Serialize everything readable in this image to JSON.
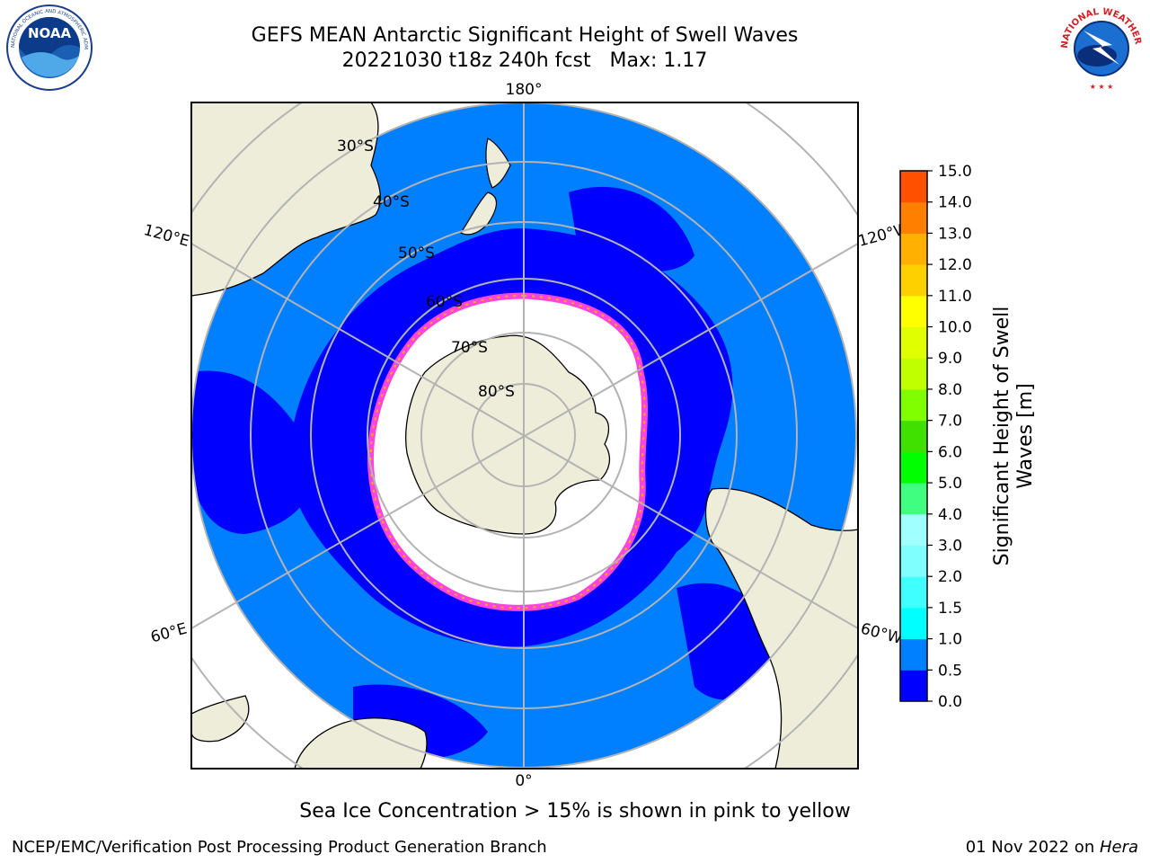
{
  "header": {
    "title_line1": "GEFS MEAN Antarctic Significant Height of Swell Waves",
    "title_line2": "20221030 t18z 240h fcst   Max: 1.17"
  },
  "logos": {
    "left": {
      "icon": "noaa-logo",
      "text": "NOAA",
      "ring_text": "NATIONAL OCEANIC AND ATMOSPHERIC ADMINISTRATION · U.S. DEPARTMENT OF COMMERCE"
    },
    "right": {
      "icon": "nws-logo",
      "ring_text": "NATIONAL WEATHER SERVICE"
    }
  },
  "map": {
    "projection": "south polar stereographic",
    "lat_labels": [
      "30°S",
      "40°S",
      "50°S",
      "60°S",
      "70°S",
      "80°S"
    ],
    "lon_labels": {
      "top": "180°",
      "bottom": "0°",
      "left_upper": "120°E",
      "left_lower": "60°E",
      "right_upper": "120°W",
      "right_lower": "60°W"
    },
    "colors": {
      "land": "#eeedda",
      "ocean_0": "#0000ff",
      "ocean_05": "#0080ff",
      "ice": "#ffffff",
      "grid": "#b3b3b3"
    }
  },
  "colorbar": {
    "label": "Significant Height of Swell Waves [m]",
    "label_line1": "Significant Height of Swell",
    "label_line2": "Waves [m]",
    "ticks": [
      "0.0",
      "0.5",
      "1.0",
      "1.5",
      "2.0",
      "3.0",
      "4.0",
      "5.0",
      "6.0",
      "7.0",
      "8.0",
      "9.0",
      "10.0",
      "11.0",
      "12.0",
      "13.0",
      "14.0",
      "15.0"
    ],
    "colors": [
      "#0000ff",
      "#0080ff",
      "#00ffff",
      "#40ffff",
      "#80ffff",
      "#a0ffff",
      "#40ff80",
      "#00ff00",
      "#40e000",
      "#80ff00",
      "#c0ff00",
      "#e0ff00",
      "#ffff00",
      "#ffd000",
      "#ffb000",
      "#ff8000",
      "#ff5000",
      "#ff2000",
      "#ff0000"
    ]
  },
  "note": "Sea Ice Concentration > 15% is shown in pink to yellow",
  "footer": {
    "left": "NCEP/EMC/Verification Post Processing Product Generation Branch",
    "right_date": "01 Nov 2022 on ",
    "right_machine": "Hera"
  }
}
